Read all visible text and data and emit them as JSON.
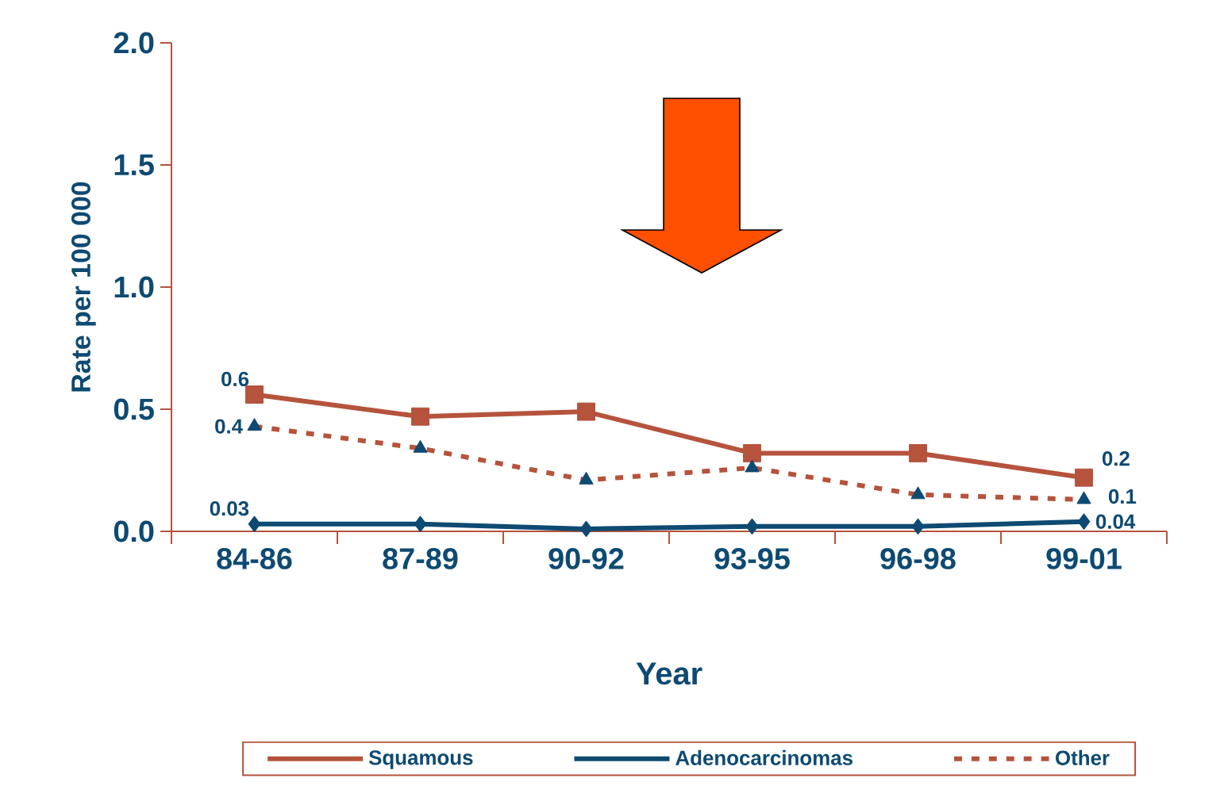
{
  "chart_data": {
    "type": "line",
    "xlabel": "Year",
    "ylabel": "Rate per 100 000",
    "categories": [
      "84-86",
      "87-89",
      "90-92",
      "93-95",
      "96-98",
      "99-01"
    ],
    "ylim": [
      0,
      2
    ],
    "yticks": [
      {
        "value": 0,
        "label": "0.0"
      },
      {
        "value": 0.5,
        "label": "0.5"
      },
      {
        "value": 1,
        "label": "1.0"
      },
      {
        "value": 1.5,
        "label": "1.5"
      },
      {
        "value": 2,
        "label": "2.0"
      }
    ],
    "grid": false,
    "legend": "bottom",
    "series": [
      {
        "name": "Squamous",
        "color": "#b5533c",
        "marker": "square",
        "line_style": "solid",
        "values": [
          0.56,
          0.47,
          0.49,
          0.32,
          0.32,
          0.22
        ],
        "value_labels": [
          "0.6",
          null,
          null,
          null,
          null,
          "0.2"
        ]
      },
      {
        "name": "Adenocarcinomas",
        "color": "#0e4a72",
        "marker": "diamond",
        "line_style": "solid",
        "values": [
          0.03,
          0.03,
          0.01,
          0.02,
          0.02,
          0.04
        ],
        "value_labels": [
          "0.03",
          null,
          null,
          null,
          null,
          "0.04"
        ]
      },
      {
        "name": "Other",
        "color": "#b5533c",
        "colors": [
          "#0e4a72",
          "#0e4a72",
          "#0e4a72",
          "#0e4a72",
          "#0e4a72",
          "#0e4a72"
        ],
        "marker": "triangle",
        "line_style": "dashed",
        "values": [
          0.43,
          0.34,
          0.21,
          0.26,
          0.15,
          0.13
        ],
        "value_labels": [
          "0.4",
          null,
          null,
          null,
          null,
          "0.1"
        ]
      }
    ]
  }
}
